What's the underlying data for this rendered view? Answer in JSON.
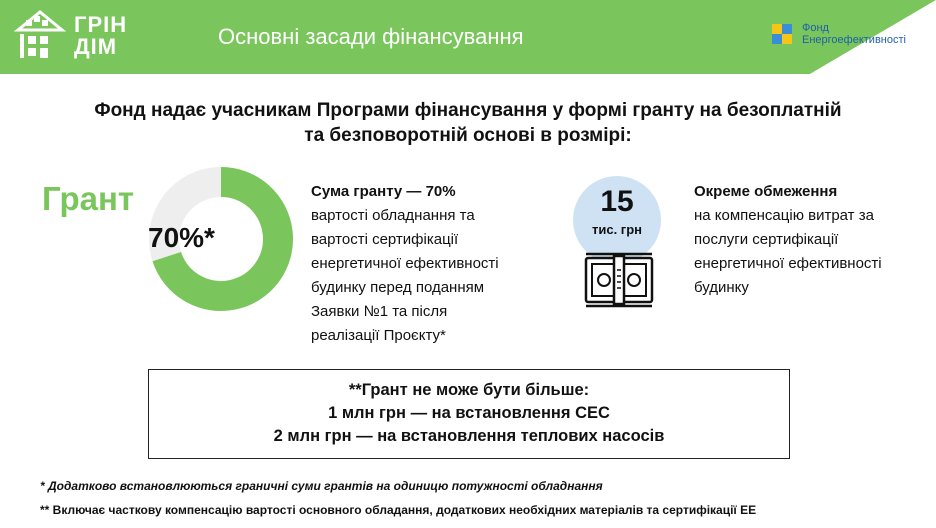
{
  "header": {
    "logo_line1": "ГРІН",
    "logo_line2": "ДІМ",
    "title": "Основні засади фінансування",
    "band_color": "#7ac65c",
    "fund_logo_line1": "Фонд",
    "fund_logo_line2": "Енергоефективності"
  },
  "intro": {
    "line1": "Фонд надає учасникам Програми фінансування у формі гранту на безоплатній",
    "line2": "та безповоротній основі в розмірі:"
  },
  "grant": {
    "word": "Грант",
    "donut_label": "70%*",
    "share_fraction": 0.7,
    "accent_color": "#7ac65c",
    "rest_color": "#eeeeee",
    "desc_lead": "Сума гранту — 70%",
    "desc_lines": [
      "вартості обладнання та",
      "вартості сертифікації",
      "енергетичної ефективності",
      "будинку перед поданням",
      "Заявки №1 та після",
      "реалізації Проєкту*"
    ]
  },
  "limit": {
    "amount": "15",
    "unit": "тис. грн",
    "circle_color": "#cfe2f4",
    "icon": "money-stack-icon",
    "desc_lead": "Окреме обмеження",
    "desc_lines": [
      "на компенсацію витрат за",
      "послуги сертифікації",
      "енергетичної ефективності",
      "будинку"
    ]
  },
  "cap_box": {
    "line1": "**Грант не може бути більше:",
    "line2": "1 млн грн — на встановлення СЕС",
    "line3": "2  млн грн — на встановлення теплових насосів"
  },
  "footnotes": {
    "note1": "* Додатково встановлюються граничні суми грантів на одиницю потужності обладнання",
    "note2": "**  Включає часткову компенсацію вартості основного обладання, додаткових необхідних матеріалів та сертифікації ЕЕ"
  }
}
